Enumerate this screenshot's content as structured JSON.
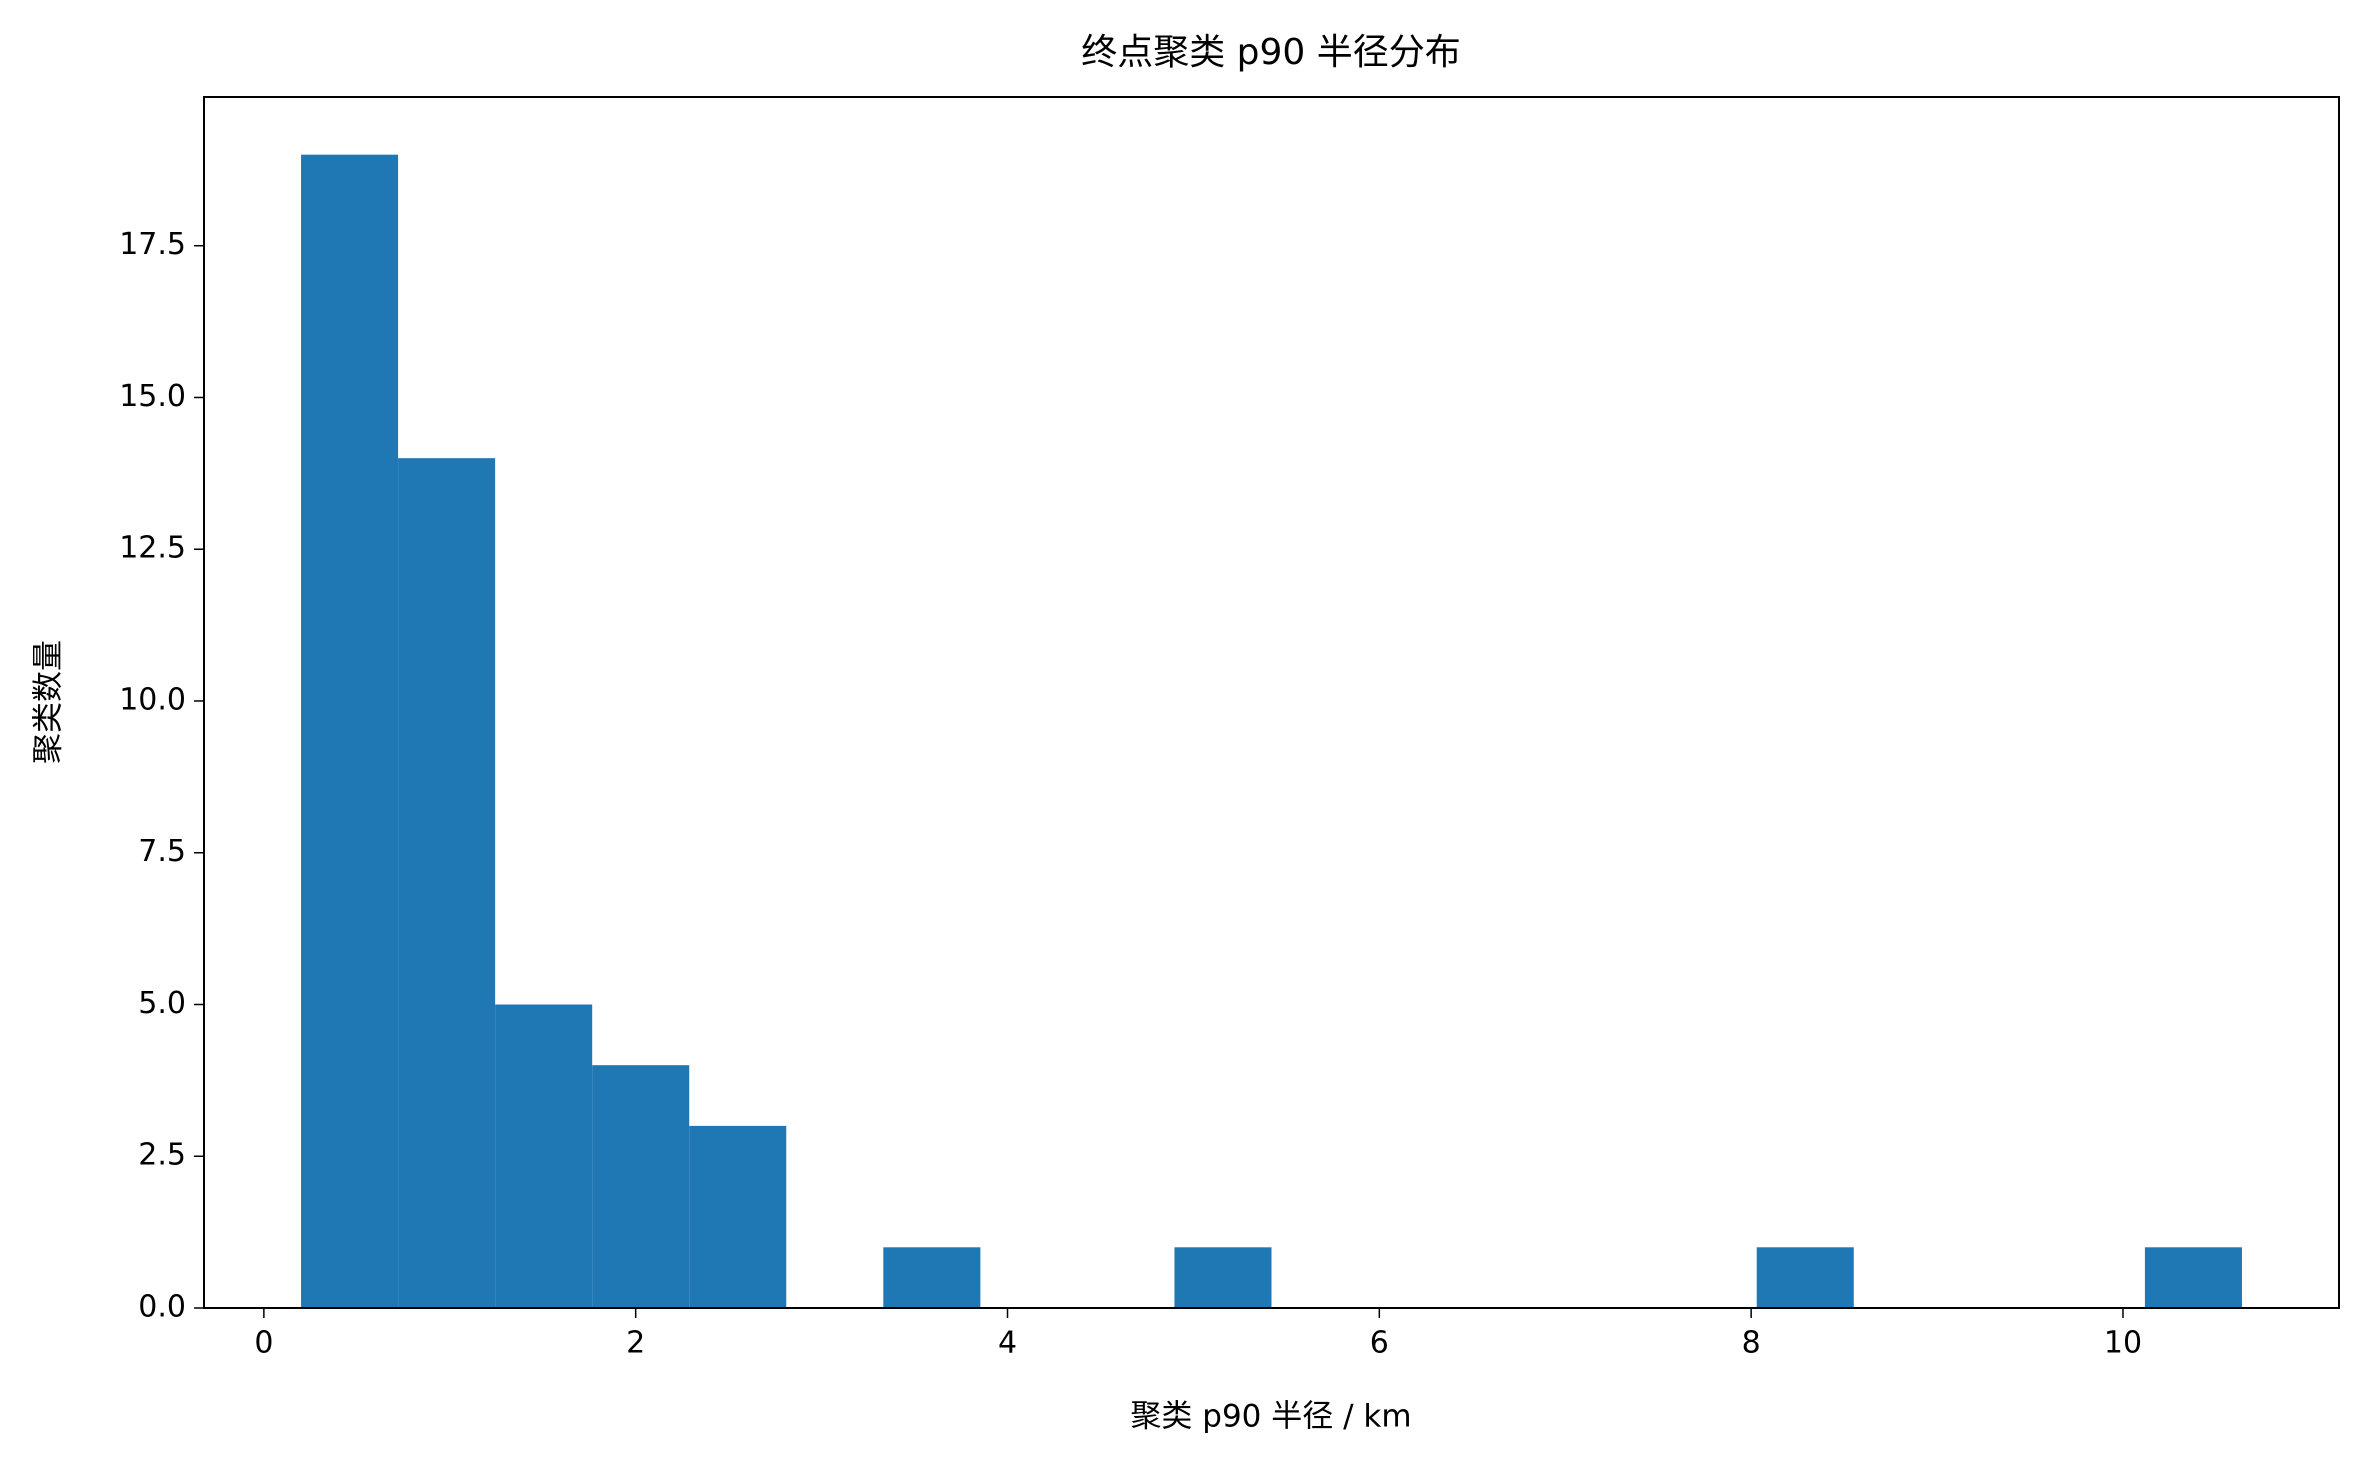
{
  "chart_data": {
    "type": "histogram",
    "title": "终点聚类 p90 半径分布",
    "x_label": "聚类 p90 半径 / km",
    "y_label": "聚类数量",
    "bins": [
      0.2,
      0.722,
      1.244,
      1.766,
      2.288,
      2.81,
      3.332,
      3.854,
      4.376,
      4.898,
      5.42,
      5.942,
      6.464,
      6.986,
      7.508,
      8.03,
      8.552,
      9.074,
      9.596,
      10.118,
      10.64
    ],
    "values": [
      19,
      14,
      5,
      4,
      3,
      0,
      1,
      0,
      0,
      1,
      0,
      0,
      0,
      0,
      0,
      1,
      0,
      0,
      0,
      1
    ],
    "color": "#1f77b4",
    "xlim": [
      -0.322,
      11.162
    ],
    "xticks": [
      0,
      2,
      4,
      6,
      8,
      10
    ],
    "ylim": [
      0,
      19.95
    ],
    "yticks": [
      {
        "value": 0,
        "label": "0.0"
      },
      {
        "value": 2.5,
        "label": "2.5"
      },
      {
        "value": 5,
        "label": "5.0"
      },
      {
        "value": 7.5,
        "label": "7.5"
      },
      {
        "value": 10,
        "label": "10.0"
      },
      {
        "value": 12.5,
        "label": "12.5"
      },
      {
        "value": 15,
        "label": "15.0"
      },
      {
        "value": 17.5,
        "label": "17.5"
      }
    ],
    "grid": false
  }
}
